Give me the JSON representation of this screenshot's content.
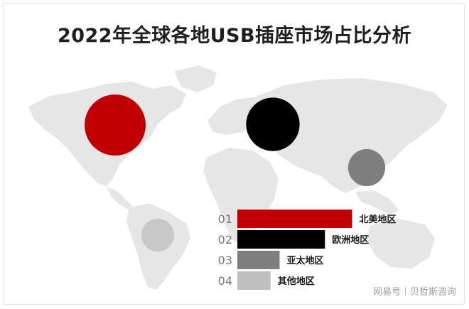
{
  "title": "2022年全球各地USB插座市场占比分析",
  "footer": {
    "platform": "网易号",
    "author": "贝哲斯咨询"
  },
  "colors": {
    "north_america": "#c00000",
    "europe": "#000000",
    "asia_pacific": "#7f7f7f",
    "others": "#bfbfbf",
    "map": "#e6e6e6"
  },
  "chart_data": {
    "type": "bar",
    "orientation": "horizontal",
    "categories": [
      "北美地区",
      "欧洲地区",
      "亚太地区",
      "其他地区"
    ],
    "ranks": [
      "01",
      "02",
      "03",
      "04"
    ],
    "values": [
      38,
      29,
      14,
      11
    ],
    "legend": "none",
    "grid": false
  },
  "bubbles": [
    {
      "region": "北美地区",
      "value": 38
    },
    {
      "region": "欧洲地区",
      "value": 29
    },
    {
      "region": "亚太地区",
      "value": 14
    },
    {
      "region": "其他地区",
      "value": 11
    }
  ]
}
